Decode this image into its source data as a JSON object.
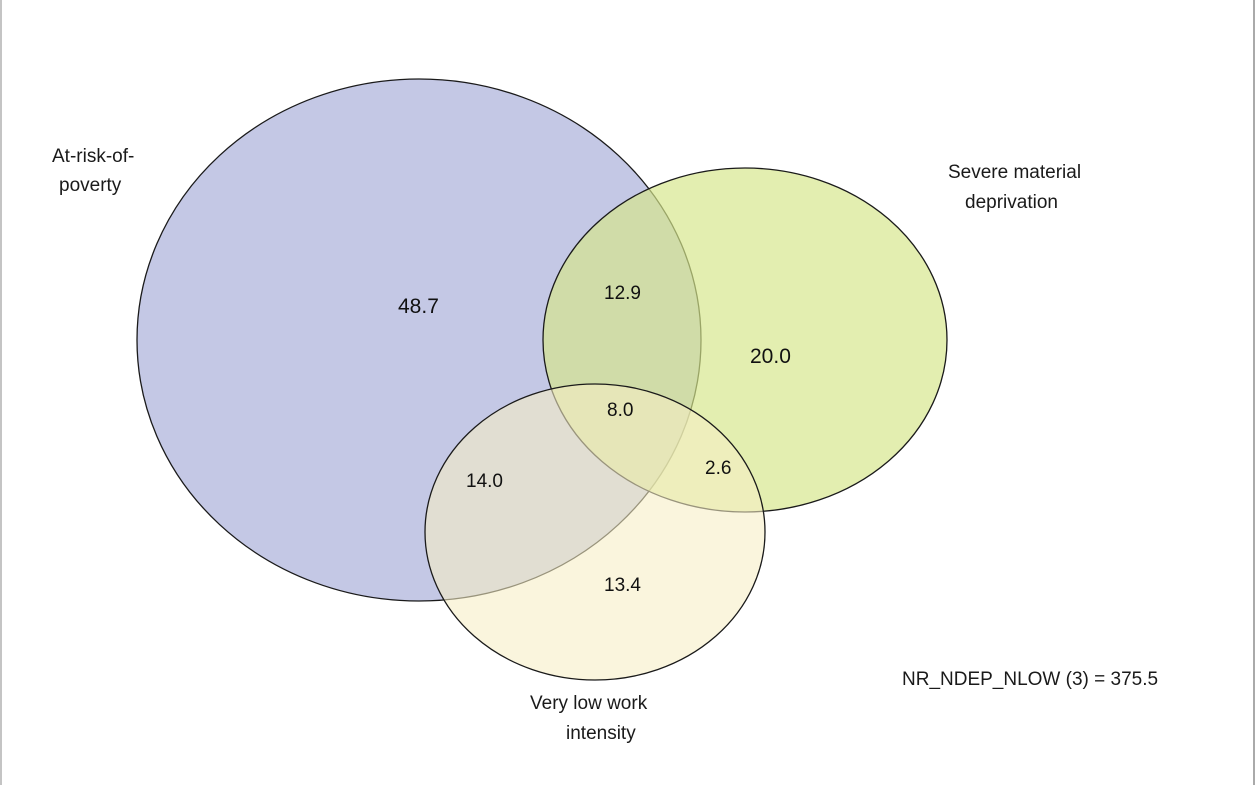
{
  "sets": {
    "poverty": {
      "label_line1": "At-risk-of-",
      "label_line2": "poverty",
      "fill": "#b3b8de",
      "stroke": "#1a1a1a"
    },
    "deprivation": {
      "label_line1": "Severe material",
      "label_line2": "deprivation",
      "fill": "#d6e68a",
      "stroke": "#1a1a1a"
    },
    "work_intensity": {
      "label_line1": "Very low work",
      "label_line2": "intensity",
      "fill": "#f6eec4",
      "stroke": "#1a1a1a"
    }
  },
  "regions": {
    "poverty_only": "48.7",
    "deprivation_only": "20.0",
    "work_only": "13.4",
    "poverty_deprivation": "12.9",
    "poverty_work": "14.0",
    "deprivation_work": "2.6",
    "all_three": "8.0"
  },
  "footnote": "NR_NDEP_NLOW (3) = 375.5"
}
